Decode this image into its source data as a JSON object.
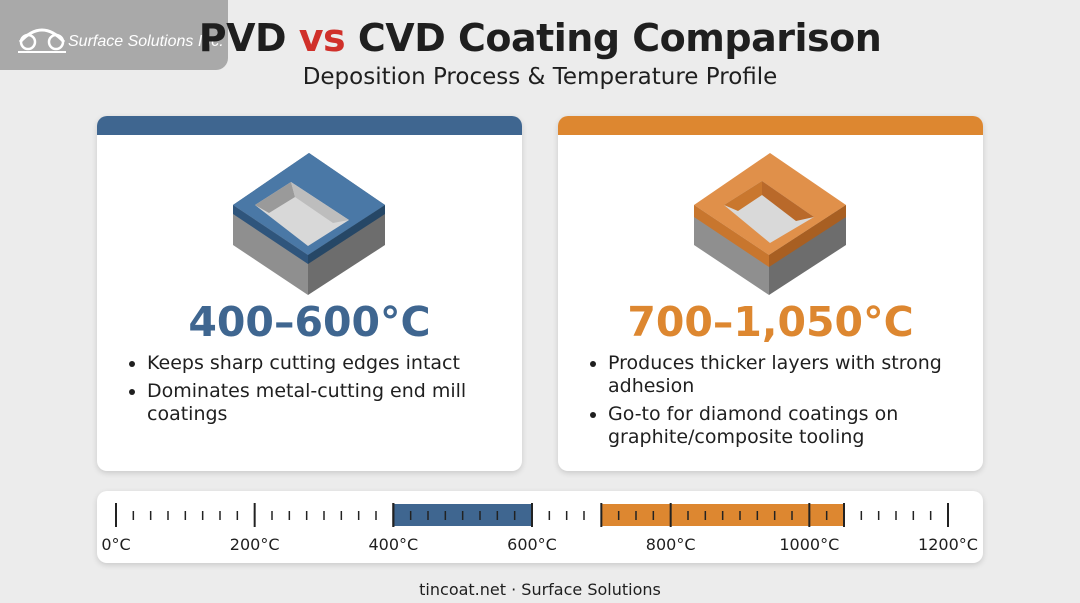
{
  "logo": {
    "text": "Surface Solutions Inc."
  },
  "header": {
    "title_parts": [
      "PVD",
      "vs",
      "CVD Coating Comparison"
    ],
    "subtitle": "Deposition Process & Temperature Profile"
  },
  "cards": [
    {
      "temperature": "400–600°C",
      "color": "#3f6690",
      "bullets": [
        "Keeps sharp cutting edges intact",
        "Dominates metal-cutting end mill coatings"
      ]
    },
    {
      "temperature": "700–1,050°C",
      "color": "#dd8730",
      "bullets": [
        "Produces thicker layers with strong adhesion",
        "Go-to for diamond coatings on graphite/composite tooling"
      ]
    }
  ],
  "scale": {
    "xlim": [
      0,
      1200
    ],
    "minor_step": 25,
    "xticks": [
      {
        "value": 0,
        "label": "0°C"
      },
      {
        "value": 200,
        "label": "200°C"
      },
      {
        "value": 400,
        "label": "400°C"
      },
      {
        "value": 600,
        "label": "600°C"
      },
      {
        "value": 800,
        "label": "800°C"
      },
      {
        "value": 1000,
        "label": "1000°C"
      },
      {
        "value": 1200,
        "label": "1200°C"
      }
    ],
    "ranges": [
      {
        "start": 400,
        "end": 600,
        "color": "#3f6690"
      },
      {
        "start": 700,
        "end": 1050,
        "color": "#dd8730"
      }
    ]
  },
  "footer": "tincoat.net · Surface Solutions"
}
